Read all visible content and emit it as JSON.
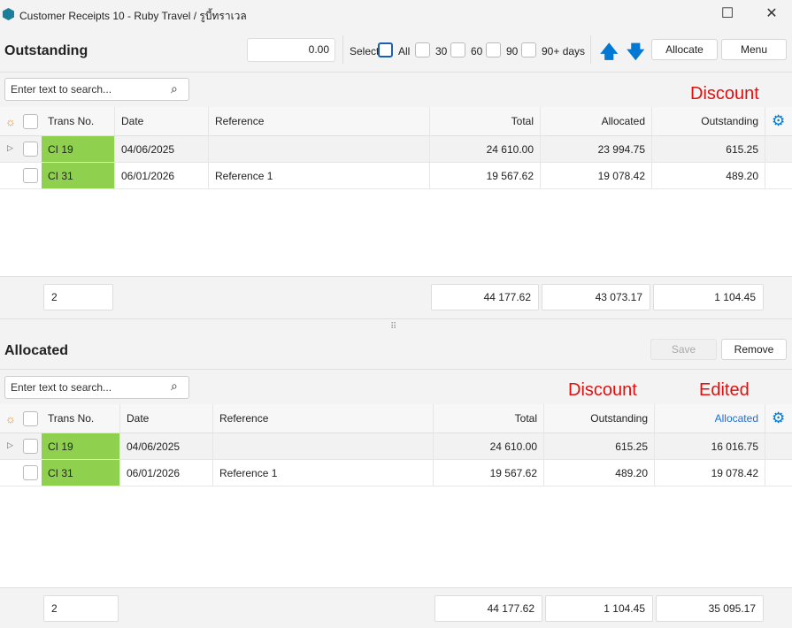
{
  "window": {
    "title": "Customer Receipts 10 - Ruby Travel / รูบี้ทราเวล"
  },
  "outstanding": {
    "heading": "Outstanding",
    "amount": "0.00",
    "select_label": "Select",
    "filters": [
      "All",
      "30",
      "60",
      "90",
      "90+ days"
    ],
    "allocate_label": "Allocate",
    "menu_label": "Menu",
    "search_placeholder": "Enter text to search...",
    "annotation": "Discount",
    "columns": [
      "Trans No.",
      "Date",
      "Reference",
      "Total",
      "Allocated",
      "Outstanding"
    ],
    "rows": [
      {
        "trans": "CI 19",
        "date": "04/06/2025",
        "ref": "",
        "total": "24 610.00",
        "c5": "23 994.75",
        "c6": "615.25"
      },
      {
        "trans": "CI 31",
        "date": "06/01/2026",
        "ref": "Reference 1",
        "total": "19 567.62",
        "c5": "19 078.42",
        "c6": "489.20"
      }
    ],
    "footer": {
      "count": "2",
      "total": "44 177.62",
      "c5": "43 073.17",
      "c6": "1 104.45"
    }
  },
  "allocated": {
    "heading": "Allocated",
    "save_label": "Save",
    "remove_label": "Remove",
    "search_placeholder": "Enter text to search...",
    "annotation_discount": "Discount",
    "annotation_edited": "Edited",
    "columns": [
      "Trans No.",
      "Date",
      "Reference",
      "Total",
      "Outstanding",
      "Allocated"
    ],
    "rows": [
      {
        "trans": "CI 19",
        "date": "04/06/2025",
        "ref": "",
        "total": "24 610.00",
        "c5": "615.25",
        "c6": "16 016.75"
      },
      {
        "trans": "CI 31",
        "date": "06/01/2026",
        "ref": "Reference 1",
        "total": "19 567.62",
        "c5": "489.20",
        "c6": "19 078.42"
      }
    ],
    "footer": {
      "count": "2",
      "total": "44 177.62",
      "c5": "1 104.45",
      "c6": "35 095.17"
    }
  },
  "colors": {
    "accent": "#0078d4",
    "highlight": "#8fd14f",
    "annotation": "#e01010",
    "edited_header": "#1a6fd8"
  }
}
